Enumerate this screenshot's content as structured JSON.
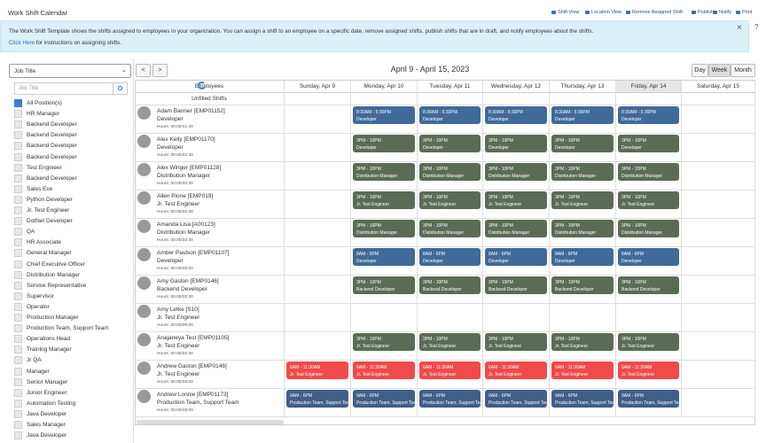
{
  "header": {
    "title": "Work Shift Calendar",
    "toolbar": [
      "Shift View",
      "Location View",
      "Remove Assigned Shift",
      "Publish",
      "Notify",
      "Print"
    ]
  },
  "info": {
    "text": "The Work Shift Template shows the shifts assigned to employees in your organization. You can assign a shift to an employee on a specific date, remove assigned shifts, publish shifts that are in draft, and notify employees about the shifts.",
    "link": "Click Here",
    "link_suffix": " for instructions on assigning shifts.",
    "close": "×",
    "help": "?"
  },
  "filter": {
    "select": "Job Title",
    "search_placeholder": "Job Title",
    "positions": [
      {
        "label": "All Position(s)",
        "checked": true
      },
      {
        "label": "HR Manager",
        "checked": false
      },
      {
        "label": "Backend Developer",
        "checked": false
      },
      {
        "label": "Backend Developer",
        "checked": false
      },
      {
        "label": "Backend Developer",
        "checked": false
      },
      {
        "label": "Backend Developer",
        "checked": false
      },
      {
        "label": "Test Engineer",
        "checked": false
      },
      {
        "label": "Backend Developer",
        "checked": false
      },
      {
        "label": "Sales Exe",
        "checked": false
      },
      {
        "label": "Python Developer",
        "checked": false
      },
      {
        "label": "Jr. Test Engineer",
        "checked": false
      },
      {
        "label": "DotNet Developer",
        "checked": false
      },
      {
        "label": "QA",
        "checked": false
      },
      {
        "label": "HR Associate",
        "checked": false
      },
      {
        "label": "General Manager",
        "checked": false
      },
      {
        "label": "Chief Executive Officer",
        "checked": false
      },
      {
        "label": "Distribution Manager",
        "checked": false
      },
      {
        "label": "Service Representative",
        "checked": false
      },
      {
        "label": "Supervisor",
        "checked": false
      },
      {
        "label": "Operator",
        "checked": false
      },
      {
        "label": "Production Manager",
        "checked": false
      },
      {
        "label": "Production Team, Support Team",
        "checked": false
      },
      {
        "label": "Operations Head",
        "checked": false
      },
      {
        "label": "Training Manager",
        "checked": false
      },
      {
        "label": "Jr QA",
        "checked": false
      },
      {
        "label": "Manager",
        "checked": false
      },
      {
        "label": "Senior Manager",
        "checked": false
      },
      {
        "label": "Junior Engineer",
        "checked": false
      },
      {
        "label": "Automation Testing",
        "checked": false
      },
      {
        "label": "Java Developer",
        "checked": false
      },
      {
        "label": "Sales Manager",
        "checked": false
      },
      {
        "label": "Java Developer",
        "checked": false
      }
    ]
  },
  "calendar": {
    "prev": "<",
    "next": ">",
    "range": "April 9 - April 15, 2023",
    "views": [
      "Day",
      "Week",
      "Month"
    ],
    "active_view": "Week",
    "employees_header": "Employees",
    "days": [
      "Sunday, Apr 9",
      "Monday, Apr 10",
      "Tuesday, Apr 11",
      "Wednesday, Apr 12",
      "Thursday, Apr 13",
      "Friday, Apr 14",
      "Saturday, Apr 15"
    ],
    "unfilled": "Unfilled Shifts",
    "employees": [
      {
        "name": "Adam Banner [EMP01152]",
        "role": "Developer",
        "hours": "Hours: 00:00/41:40",
        "color": "#3f6a9a",
        "shifts": [
          null,
          {
            "time": "8:30AM - 5:30PM",
            "role": "Developer"
          },
          {
            "time": "8:30AM - 5:30PM",
            "role": "Developer"
          },
          {
            "time": "8:30AM - 5:30PM",
            "role": "Developer"
          },
          {
            "time": "8:30AM - 5:30PM",
            "role": "Developer"
          },
          {
            "time": "8:30AM - 5:30PM",
            "role": "Developer"
          },
          null
        ]
      },
      {
        "name": "Alex Kelly [EMP01170]",
        "role": "Developer",
        "hours": "Hours: 00:00/32:30",
        "color": "#5c6b55",
        "shifts": [
          null,
          {
            "time": "3PM - 10PM",
            "role": "Developer"
          },
          {
            "time": "3PM - 10PM",
            "role": "Developer"
          },
          {
            "time": "3PM - 10PM",
            "role": "Developer"
          },
          {
            "time": "3PM - 10PM",
            "role": "Developer"
          },
          {
            "time": "3PM - 10PM",
            "role": "Developer"
          },
          null
        ]
      },
      {
        "name": "Alex Winger [EMP01128]",
        "role": "Distribution Manager",
        "hours": "Hours: 00:00/32:30",
        "color": "#5c6b55",
        "shifts": [
          null,
          {
            "time": "3PM - 10PM",
            "role": "Distribution Manager"
          },
          {
            "time": "3PM - 10PM",
            "role": "Distribution Manager"
          },
          {
            "time": "3PM - 10PM",
            "role": "Distribution Manager"
          },
          {
            "time": "3PM - 10PM",
            "role": "Distribution Manager"
          },
          {
            "time": "3PM - 10PM",
            "role": "Distribution Manager"
          },
          null
        ]
      },
      {
        "name": "Allen Pione [EMP019]",
        "role": "Jr. Test Engineer",
        "hours": "Hours: 00:00/32:30",
        "color": "#5c6b55",
        "shifts": [
          null,
          {
            "time": "3PM - 10PM",
            "role": "Jr. Test Engineer"
          },
          {
            "time": "3PM - 10PM",
            "role": "Jr. Test Engineer"
          },
          {
            "time": "3PM - 10PM",
            "role": "Jr. Test Engineer"
          },
          {
            "time": "3PM - 10PM",
            "role": "Jr. Test Engineer"
          },
          {
            "time": "3PM - 10PM",
            "role": "Jr. Test Engineer"
          },
          null
        ]
      },
      {
        "name": "Amanda Lisa [A00123]",
        "role": "Distribution Manager",
        "hours": "Hours: 00:00/32:30",
        "color": "#5c6b55",
        "shifts": [
          null,
          {
            "time": "3PM - 10PM",
            "role": "Distribution Manager"
          },
          {
            "time": "3PM - 10PM",
            "role": "Distribution Manager"
          },
          {
            "time": "3PM - 10PM",
            "role": "Distribution Manager"
          },
          {
            "time": "3PM - 10PM",
            "role": "Distribution Manager"
          },
          {
            "time": "3PM - 10PM",
            "role": "Distribution Manager"
          },
          null
        ]
      },
      {
        "name": "Amber Paulson [EMP01107]",
        "role": "Developer",
        "hours": "Hours: 00:00/45:00",
        "color": "#3f6a9a",
        "shifts": [
          null,
          {
            "time": "8AM - 6PM",
            "role": "Developer"
          },
          {
            "time": "8AM - 6PM",
            "role": "Developer"
          },
          {
            "time": "8AM - 6PM",
            "role": "Developer"
          },
          {
            "time": "8AM - 6PM",
            "role": "Developer"
          },
          {
            "time": "8AM - 6PM",
            "role": "Developer"
          },
          null
        ]
      },
      {
        "name": "Amy Gaston [EMP0146]",
        "role": "Backend Developer",
        "hours": "Hours: 00:00/32:30",
        "color": "#5c6b55",
        "shifts": [
          null,
          {
            "time": "3PM - 10PM",
            "role": "Backend Developer"
          },
          {
            "time": "3PM - 10PM",
            "role": "Backend Developer"
          },
          {
            "time": "3PM - 10PM",
            "role": "Backend Developer"
          },
          {
            "time": "3PM - 10PM",
            "role": "Backend Developer"
          },
          {
            "time": "3PM - 10PM",
            "role": "Backend Developer"
          },
          null
        ]
      },
      {
        "name": "Amy Letke [S10]",
        "role": "Jr. Test Engineer",
        "hours": "Hours: 00:00/00:00",
        "color": "#5c6b55",
        "shifts": [
          null,
          null,
          null,
          null,
          null,
          null,
          null
        ]
      },
      {
        "name": "Anajaneya Test [EMP01105]",
        "role": "Jr. Test Engineer",
        "hours": "Hours: 00:00/32:30",
        "color": "#5c6b55",
        "shifts": [
          null,
          {
            "time": "3PM - 10PM",
            "role": "Jr. Test Engineer"
          },
          {
            "time": "3PM - 10PM",
            "role": "Jr. Test Engineer"
          },
          {
            "time": "3PM - 10PM",
            "role": "Jr. Test Engineer"
          },
          {
            "time": "3PM - 10PM",
            "role": "Jr. Test Engineer"
          },
          {
            "time": "3PM - 10PM",
            "role": "Jr. Test Engineer"
          },
          null
        ]
      },
      {
        "name": "Andrew Gaston [EMP0146]",
        "role": "Jr. Test Engineer",
        "hours": "Hours: 00:00/33:00",
        "color": "#f04a4a",
        "shifts": [
          {
            "time": "6AM - 11:30AM",
            "role": "Jr. Test Engineer"
          },
          {
            "time": "6AM - 11:30AM",
            "role": "Jr. Test Engineer"
          },
          {
            "time": "6AM - 11:30AM",
            "role": "Jr. Test Engineer"
          },
          {
            "time": "6AM - 11:30AM",
            "role": "Jr. Test Engineer"
          },
          {
            "time": "6AM - 11:30AM",
            "role": "Jr. Test Engineer"
          },
          {
            "time": "6AM - 11:30AM",
            "role": "Jr. Test Engineer"
          },
          null
        ]
      },
      {
        "name": "Andrew Lonnie [EMP01173]",
        "role": "Production Team, Support Team",
        "hours": "Hours: 00:00/48:00",
        "color": "#3f5f87",
        "shifts": [
          {
            "time": "9AM - 6PM",
            "role": "Production Team, Support Team"
          },
          {
            "time": "9AM - 6PM",
            "role": "Production Team, Support Team"
          },
          {
            "time": "9AM - 6PM",
            "role": "Production Team, Support Team"
          },
          {
            "time": "9AM - 6PM",
            "role": "Production Team, Support Team"
          },
          {
            "time": "9AM - 6PM",
            "role": "Production Team, Support Team"
          },
          {
            "time": "9AM - 6PM",
            "role": "Production Team, Support Team"
          },
          null
        ]
      }
    ]
  }
}
